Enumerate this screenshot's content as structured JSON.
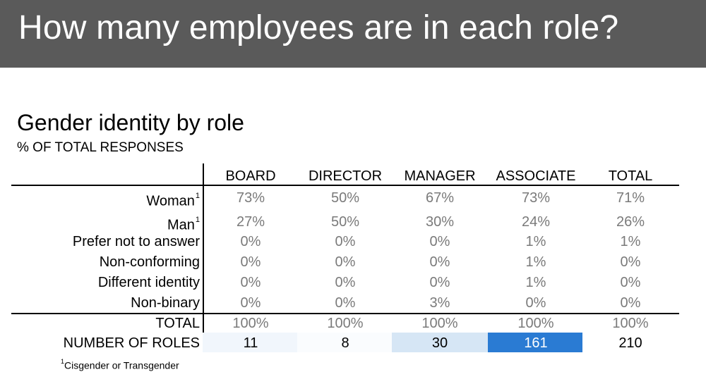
{
  "header": {
    "title": "How many employees are in each role?"
  },
  "section": {
    "title": "Gender identity by role",
    "subtitle": "% OF TOTAL RESPONSES"
  },
  "table": {
    "columns": [
      "BOARD",
      "DIRECTOR",
      "MANAGER",
      "ASSOCIATE",
      "TOTAL"
    ],
    "rows": [
      {
        "label": "Woman",
        "sup": "1",
        "values": [
          "73%",
          "50%",
          "67%",
          "73%",
          "71%"
        ]
      },
      {
        "label": "Man",
        "sup": "1",
        "values": [
          "27%",
          "50%",
          "30%",
          "24%",
          "26%"
        ]
      },
      {
        "label": "Prefer not to answer",
        "sup": "",
        "values": [
          "0%",
          "0%",
          "0%",
          "1%",
          "1%"
        ]
      },
      {
        "label": "Non-conforming",
        "sup": "",
        "values": [
          "0%",
          "0%",
          "0%",
          "1%",
          "0%"
        ]
      },
      {
        "label": "Different identity",
        "sup": "",
        "values": [
          "0%",
          "0%",
          "0%",
          "1%",
          "0%"
        ]
      },
      {
        "label": "Non-binary",
        "sup": "",
        "values": [
          "0%",
          "0%",
          "3%",
          "0%",
          "0%"
        ]
      }
    ],
    "total_row": {
      "label": "TOTAL",
      "values": [
        "100%",
        "100%",
        "100%",
        "100%",
        "100%"
      ]
    },
    "roles_row": {
      "label": "NUMBER OF ROLES",
      "values": [
        "11",
        "8",
        "30",
        "161",
        "210"
      ],
      "heat_colors": [
        "#f1f6fc",
        "#fafcfe",
        "#d6e6f5",
        "#2a7bd3",
        "#ffffff"
      ]
    }
  },
  "footnote": {
    "sup": "1",
    "text": "Cisgender or Transgender"
  }
}
